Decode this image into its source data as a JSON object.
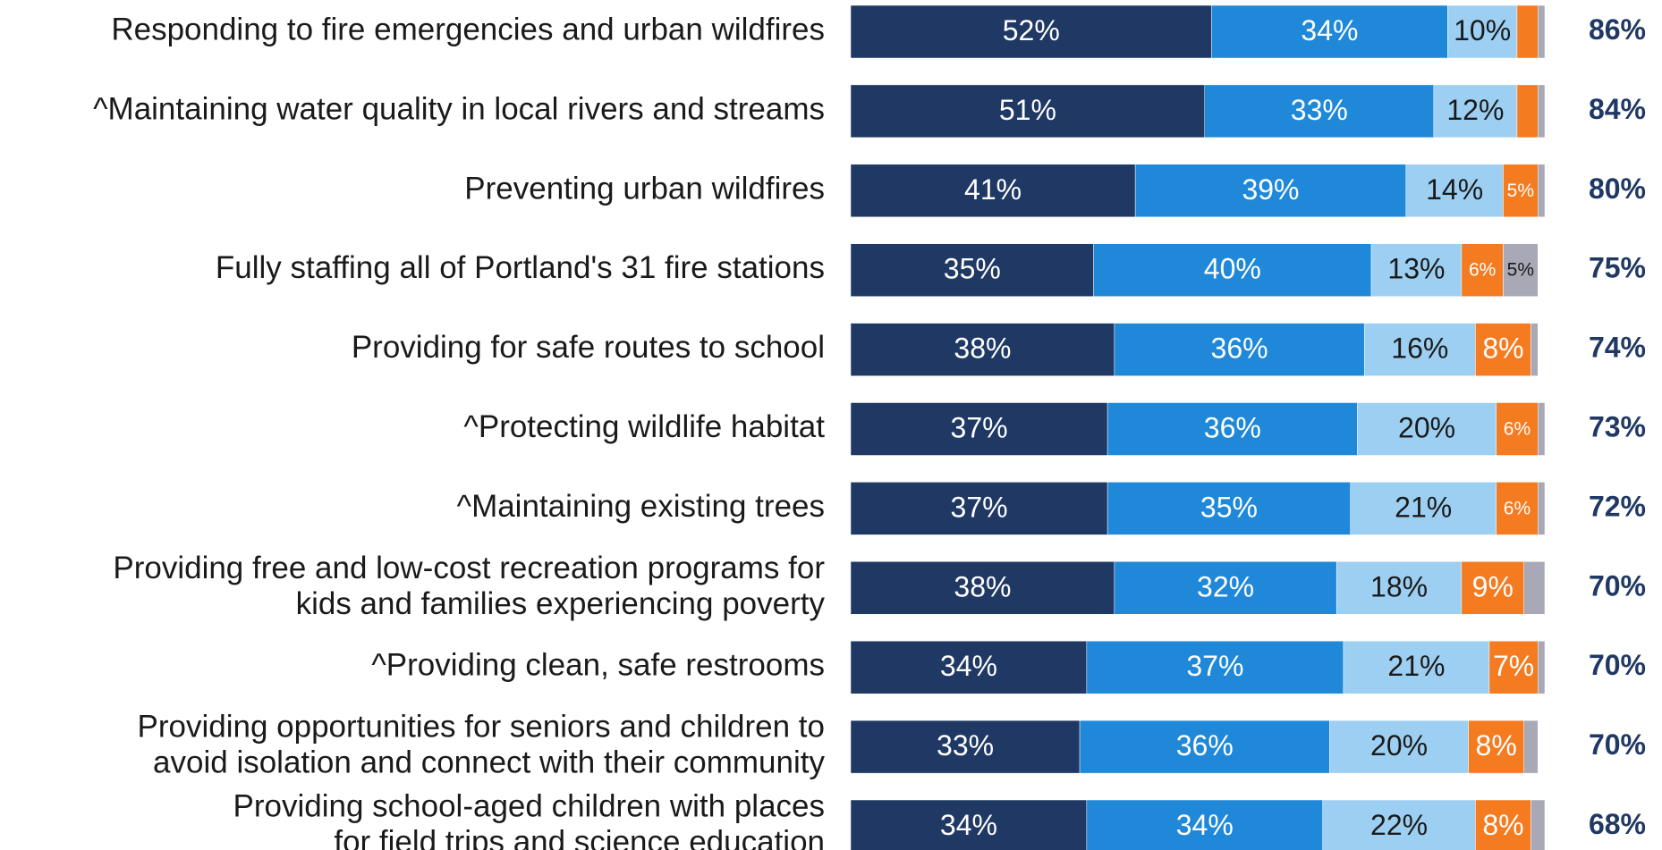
{
  "chart_data": {
    "type": "stacked-bar-horizontal",
    "categories": [
      "Responding to fire emergencies and urban wildfires",
      "^Maintaining water quality in local rivers and streams",
      "Preventing urban wildfires",
      "Fully staffing all of Portland's 31 fire stations",
      "Providing for safe routes to school",
      "^Protecting wildlife habitat",
      "^Maintaining existing trees",
      "Providing free and low-cost recreation programs for\nkids and families experiencing poverty",
      "^Providing clean, safe restrooms",
      "Providing opportunities for seniors and children to\navoid isolation and connect with their community",
      "Providing school-aged children with places\nfor field trips and science education"
    ],
    "xlim": [
      0,
      100
    ],
    "series": [
      {
        "color": "#1f3864",
        "values": [
          52,
          51,
          41,
          35,
          38,
          37,
          37,
          38,
          34,
          33,
          34
        ],
        "value_labels": [
          "52%",
          "51%",
          "41%",
          "35%",
          "38%",
          "37%",
          "37%",
          "38%",
          "34%",
          "33%",
          "34%"
        ]
      },
      {
        "color": "#1f88d8",
        "values": [
          34,
          33,
          39,
          40,
          36,
          36,
          35,
          32,
          37,
          36,
          34
        ],
        "value_labels": [
          "34%",
          "33%",
          "39%",
          "40%",
          "36%",
          "36%",
          "35%",
          "32%",
          "37%",
          "36%",
          "34%"
        ]
      },
      {
        "color": "#9dcff2",
        "values": [
          10,
          12,
          14,
          13,
          16,
          20,
          21,
          18,
          21,
          20,
          22
        ],
        "value_labels": [
          "10%",
          "12%",
          "14%",
          "13%",
          "16%",
          "20%",
          "21%",
          "18%",
          "21%",
          "20%",
          "22%"
        ]
      },
      {
        "color": "#f47b20",
        "values": [
          3,
          3,
          5,
          6,
          8,
          6,
          6,
          9,
          7,
          8,
          8
        ],
        "value_labels": [
          null,
          null,
          "5%",
          "6%",
          "8%",
          "6%",
          "6%",
          "9%",
          "7%",
          "8%",
          "8%"
        ]
      },
      {
        "color": "#a8a8b6",
        "values": [
          1,
          1,
          1,
          5,
          1,
          1,
          1,
          3,
          1,
          2,
          2
        ],
        "value_labels": [
          null,
          null,
          null,
          "5%",
          null,
          null,
          null,
          null,
          null,
          null,
          null
        ]
      }
    ],
    "totals": {
      "color": "#1f3864",
      "values": [
        86,
        84,
        80,
        75,
        74,
        73,
        72,
        70,
        70,
        70,
        68
      ],
      "value_labels": [
        "86%",
        "84%",
        "80%",
        "75%",
        "74%",
        "73%",
        "72%",
        "70%",
        "70%",
        "70%",
        "68%"
      ]
    }
  }
}
